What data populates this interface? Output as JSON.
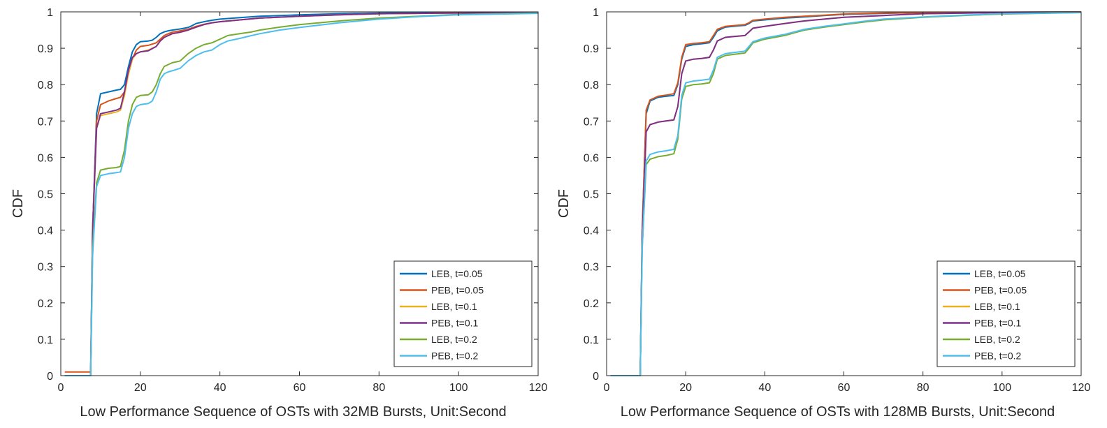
{
  "chart_data": [
    {
      "type": "line",
      "xlabel": "Low Performance Sequence of OSTs with 32MB Bursts, Unit:Second",
      "ylabel": "CDF",
      "xlim": [
        0,
        120
      ],
      "ylim": [
        0,
        1
      ],
      "xticks": [
        "0",
        "20",
        "40",
        "60",
        "80",
        "100",
        "120"
      ],
      "yticks": [
        "0",
        "0.1",
        "0.2",
        "0.3",
        "0.4",
        "0.5",
        "0.6",
        "0.7",
        "0.8",
        "0.9",
        "1"
      ],
      "grid": false,
      "legend_position": "bottom-right",
      "series": [
        {
          "name": "LEB, t=0.05",
          "color": "#0072BD",
          "x": [
            1,
            7,
            7.5,
            8,
            9,
            10,
            12,
            14,
            15,
            16,
            17,
            18,
            19,
            20,
            22,
            23,
            24,
            25,
            26,
            27,
            28,
            30,
            32,
            33,
            34,
            36,
            38,
            40,
            45,
            50,
            60,
            70,
            80,
            100,
            120
          ],
          "y": [
            0,
            0,
            0,
            0.4,
            0.72,
            0.775,
            0.78,
            0.785,
            0.787,
            0.8,
            0.85,
            0.89,
            0.91,
            0.918,
            0.92,
            0.922,
            0.93,
            0.94,
            0.945,
            0.948,
            0.95,
            0.953,
            0.957,
            0.962,
            0.968,
            0.973,
            0.977,
            0.98,
            0.984,
            0.988,
            0.992,
            0.995,
            0.997,
            0.998,
            0.999
          ]
        },
        {
          "name": "PEB, t=0.05",
          "color": "#D95319",
          "x": [
            1,
            7,
            7.5,
            8,
            9,
            10,
            12,
            14,
            15,
            16,
            17,
            18,
            19,
            20,
            22,
            24,
            25,
            26,
            27,
            28,
            30,
            32,
            34,
            36,
            38,
            40,
            45,
            50,
            60,
            70,
            80,
            100,
            120
          ],
          "y": [
            0.01,
            0.01,
            0.01,
            0.4,
            0.7,
            0.745,
            0.755,
            0.762,
            0.765,
            0.78,
            0.83,
            0.87,
            0.895,
            0.905,
            0.908,
            0.915,
            0.925,
            0.935,
            0.94,
            0.944,
            0.948,
            0.952,
            0.96,
            0.966,
            0.97,
            0.973,
            0.978,
            0.983,
            0.988,
            0.992,
            0.995,
            0.997,
            0.999
          ]
        },
        {
          "name": "LEB, t=0.1",
          "color": "#EDB120",
          "x": [
            1,
            7,
            7.5,
            8,
            9,
            10,
            12,
            14,
            15,
            16,
            17,
            18,
            19,
            20,
            22,
            24,
            25,
            26,
            28,
            30,
            32,
            34,
            36,
            38,
            40,
            45,
            50,
            60,
            70,
            80,
            100,
            120
          ],
          "y": [
            0,
            0,
            0,
            0.4,
            0.68,
            0.715,
            0.72,
            0.725,
            0.73,
            0.77,
            0.83,
            0.87,
            0.885,
            0.89,
            0.895,
            0.905,
            0.92,
            0.93,
            0.94,
            0.944,
            0.95,
            0.958,
            0.965,
            0.97,
            0.973,
            0.978,
            0.983,
            0.988,
            0.992,
            0.995,
            0.997,
            0.999
          ]
        },
        {
          "name": "PEB, t=0.1",
          "color": "#7E2F8E",
          "x": [
            1,
            7,
            7.5,
            8,
            9,
            10,
            12,
            14,
            15,
            16,
            17,
            18,
            19,
            20,
            22,
            24,
            25,
            26,
            28,
            30,
            32,
            34,
            36,
            38,
            40,
            45,
            50,
            60,
            70,
            80,
            100,
            120
          ],
          "y": [
            0,
            0,
            0,
            0.4,
            0.68,
            0.72,
            0.725,
            0.73,
            0.735,
            0.78,
            0.84,
            0.875,
            0.885,
            0.89,
            0.893,
            0.905,
            0.92,
            0.93,
            0.94,
            0.944,
            0.95,
            0.958,
            0.965,
            0.97,
            0.973,
            0.978,
            0.983,
            0.988,
            0.992,
            0.995,
            0.997,
            0.999
          ]
        },
        {
          "name": "LEB, t=0.2",
          "color": "#77AC30",
          "x": [
            1,
            7,
            7.5,
            8,
            9,
            10,
            12,
            14,
            15,
            16,
            17,
            18,
            19,
            20,
            22,
            23,
            24,
            25,
            26,
            27,
            28,
            30,
            32,
            34,
            36,
            38,
            40,
            42,
            45,
            48,
            50,
            55,
            60,
            70,
            80,
            90,
            100,
            120
          ],
          "y": [
            0,
            0,
            0,
            0.35,
            0.53,
            0.565,
            0.57,
            0.572,
            0.575,
            0.62,
            0.7,
            0.745,
            0.765,
            0.77,
            0.772,
            0.78,
            0.8,
            0.83,
            0.85,
            0.855,
            0.86,
            0.865,
            0.885,
            0.9,
            0.91,
            0.915,
            0.925,
            0.935,
            0.94,
            0.945,
            0.95,
            0.958,
            0.965,
            0.975,
            0.983,
            0.988,
            0.993,
            0.997
          ]
        },
        {
          "name": "PEB, t=0.2",
          "color": "#4DBEEE",
          "x": [
            1,
            7,
            7.5,
            8,
            9,
            10,
            12,
            14,
            15,
            16,
            17,
            18,
            19,
            20,
            22,
            23,
            24,
            25,
            26,
            27,
            28,
            30,
            32,
            34,
            36,
            38,
            40,
            42,
            45,
            48,
            50,
            55,
            60,
            70,
            80,
            90,
            100,
            120
          ],
          "y": [
            0,
            0,
            0,
            0.33,
            0.52,
            0.55,
            0.555,
            0.558,
            0.56,
            0.6,
            0.68,
            0.72,
            0.74,
            0.745,
            0.748,
            0.755,
            0.78,
            0.815,
            0.83,
            0.835,
            0.838,
            0.845,
            0.865,
            0.88,
            0.89,
            0.895,
            0.91,
            0.92,
            0.927,
            0.935,
            0.94,
            0.95,
            0.957,
            0.97,
            0.98,
            0.987,
            0.992,
            0.996
          ]
        }
      ]
    },
    {
      "type": "line",
      "xlabel": "Low Performance Sequence of OSTs with 128MB Bursts, Unit:Second",
      "ylabel": "CDF",
      "xlim": [
        0,
        120
      ],
      "ylim": [
        0,
        1
      ],
      "xticks": [
        "0",
        "20",
        "40",
        "60",
        "80",
        "100",
        "120"
      ],
      "yticks": [
        "0",
        "0.1",
        "0.2",
        "0.3",
        "0.4",
        "0.5",
        "0.6",
        "0.7",
        "0.8",
        "0.9",
        "1"
      ],
      "grid": false,
      "legend_position": "bottom-right",
      "series": [
        {
          "name": "LEB, t=0.05",
          "color": "#0072BD",
          "x": [
            1,
            8,
            8.5,
            9,
            10,
            11,
            13,
            15,
            17,
            18,
            19,
            20,
            22,
            24,
            26,
            27,
            28,
            30,
            32,
            35,
            36,
            37,
            40,
            45,
            50,
            55,
            60,
            70,
            80,
            100,
            120
          ],
          "y": [
            0,
            0,
            0,
            0.4,
            0.72,
            0.755,
            0.765,
            0.768,
            0.77,
            0.8,
            0.87,
            0.905,
            0.91,
            0.912,
            0.915,
            0.93,
            0.948,
            0.958,
            0.96,
            0.963,
            0.968,
            0.975,
            0.978,
            0.983,
            0.986,
            0.99,
            0.993,
            0.996,
            0.998,
            0.999,
            1.0
          ]
        },
        {
          "name": "PEB, t=0.05",
          "color": "#D95319",
          "x": [
            1,
            8,
            8.5,
            9,
            10,
            11,
            13,
            15,
            17,
            18,
            19,
            20,
            22,
            24,
            26,
            27,
            28,
            30,
            32,
            35,
            36,
            37,
            40,
            45,
            50,
            55,
            60,
            70,
            80,
            100,
            120
          ],
          "y": [
            0,
            0,
            0,
            0.4,
            0.73,
            0.758,
            0.768,
            0.771,
            0.775,
            0.805,
            0.875,
            0.91,
            0.913,
            0.915,
            0.918,
            0.935,
            0.952,
            0.96,
            0.962,
            0.965,
            0.97,
            0.977,
            0.98,
            0.985,
            0.988,
            0.991,
            0.994,
            0.997,
            0.998,
            0.999,
            1.0
          ]
        },
        {
          "name": "LEB, t=0.1",
          "color": "#EDB120",
          "x": [
            1,
            8,
            8.5,
            9,
            10,
            11,
            13,
            15,
            17,
            18,
            19,
            20,
            22,
            24,
            26,
            27,
            28,
            30,
            32,
            35,
            36,
            37,
            40,
            45,
            50,
            55,
            60,
            70,
            80,
            100,
            120
          ],
          "y": [
            0,
            0,
            0,
            0.38,
            0.67,
            0.69,
            0.697,
            0.7,
            0.703,
            0.74,
            0.83,
            0.865,
            0.87,
            0.872,
            0.875,
            0.895,
            0.92,
            0.93,
            0.932,
            0.935,
            0.945,
            0.955,
            0.96,
            0.968,
            0.975,
            0.98,
            0.985,
            0.99,
            0.995,
            0.998,
            0.999
          ]
        },
        {
          "name": "PEB, t=0.1",
          "color": "#7E2F8E",
          "x": [
            1,
            8,
            8.5,
            9,
            10,
            11,
            13,
            15,
            17,
            18,
            19,
            20,
            22,
            24,
            26,
            27,
            28,
            30,
            32,
            35,
            36,
            37,
            40,
            45,
            50,
            55,
            60,
            70,
            80,
            100,
            120
          ],
          "y": [
            0,
            0,
            0,
            0.38,
            0.67,
            0.69,
            0.697,
            0.7,
            0.703,
            0.74,
            0.83,
            0.865,
            0.87,
            0.872,
            0.875,
            0.895,
            0.92,
            0.93,
            0.932,
            0.935,
            0.945,
            0.955,
            0.96,
            0.968,
            0.975,
            0.98,
            0.985,
            0.99,
            0.995,
            0.998,
            0.999
          ]
        },
        {
          "name": "LEB, t=0.2",
          "color": "#77AC30",
          "x": [
            1,
            8,
            8.5,
            9,
            10,
            11,
            13,
            15,
            17,
            18,
            19,
            20,
            22,
            24,
            26,
            27,
            28,
            30,
            32,
            35,
            36,
            37,
            40,
            45,
            50,
            55,
            60,
            65,
            70,
            80,
            90,
            100,
            120
          ],
          "y": [
            0,
            0,
            0,
            0.35,
            0.58,
            0.595,
            0.602,
            0.605,
            0.61,
            0.65,
            0.76,
            0.795,
            0.8,
            0.802,
            0.805,
            0.83,
            0.87,
            0.88,
            0.883,
            0.887,
            0.9,
            0.915,
            0.925,
            0.935,
            0.95,
            0.958,
            0.965,
            0.972,
            0.978,
            0.985,
            0.99,
            0.994,
            0.998
          ]
        },
        {
          "name": "PEB, t=0.2",
          "color": "#4DBEEE",
          "x": [
            1,
            8,
            8.5,
            9,
            10,
            11,
            13,
            15,
            17,
            18,
            19,
            20,
            22,
            24,
            26,
            27,
            28,
            30,
            32,
            35,
            36,
            37,
            40,
            45,
            50,
            55,
            60,
            65,
            70,
            80,
            90,
            100,
            120
          ],
          "y": [
            0,
            0,
            0,
            0.35,
            0.59,
            0.608,
            0.615,
            0.618,
            0.622,
            0.66,
            0.77,
            0.805,
            0.81,
            0.812,
            0.815,
            0.84,
            0.875,
            0.885,
            0.888,
            0.892,
            0.905,
            0.918,
            0.928,
            0.938,
            0.952,
            0.96,
            0.967,
            0.974,
            0.98,
            0.986,
            0.991,
            0.995,
            0.998
          ]
        }
      ]
    }
  ]
}
